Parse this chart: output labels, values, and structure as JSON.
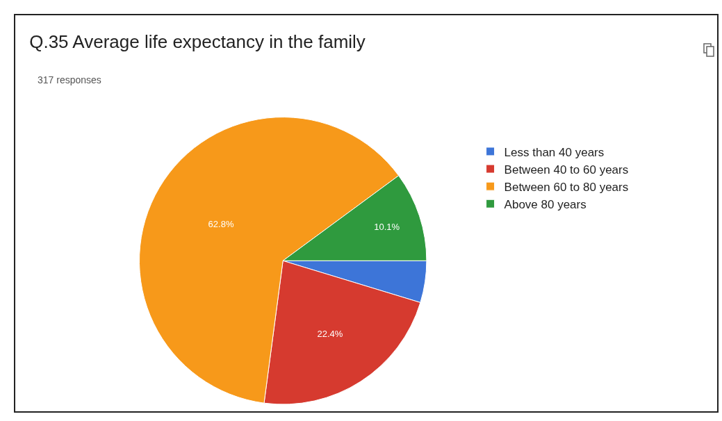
{
  "chart_data": {
    "type": "pie",
    "title": "Q.35 Average life expectancy in the family",
    "subtitle": "317 responses",
    "categories": [
      "Less than 40 years",
      "Between 40 to 60 years",
      "Between 60 to 80 years",
      "Above 80 years"
    ],
    "values": [
      4.7,
      22.4,
      62.8,
      10.1
    ],
    "value_labels": [
      null,
      "22.4%",
      "62.8%",
      "10.1%"
    ],
    "colors": [
      "#3d75d8",
      "#d63a2f",
      "#f7991a",
      "#2f9a3e"
    ],
    "legend": "right"
  }
}
